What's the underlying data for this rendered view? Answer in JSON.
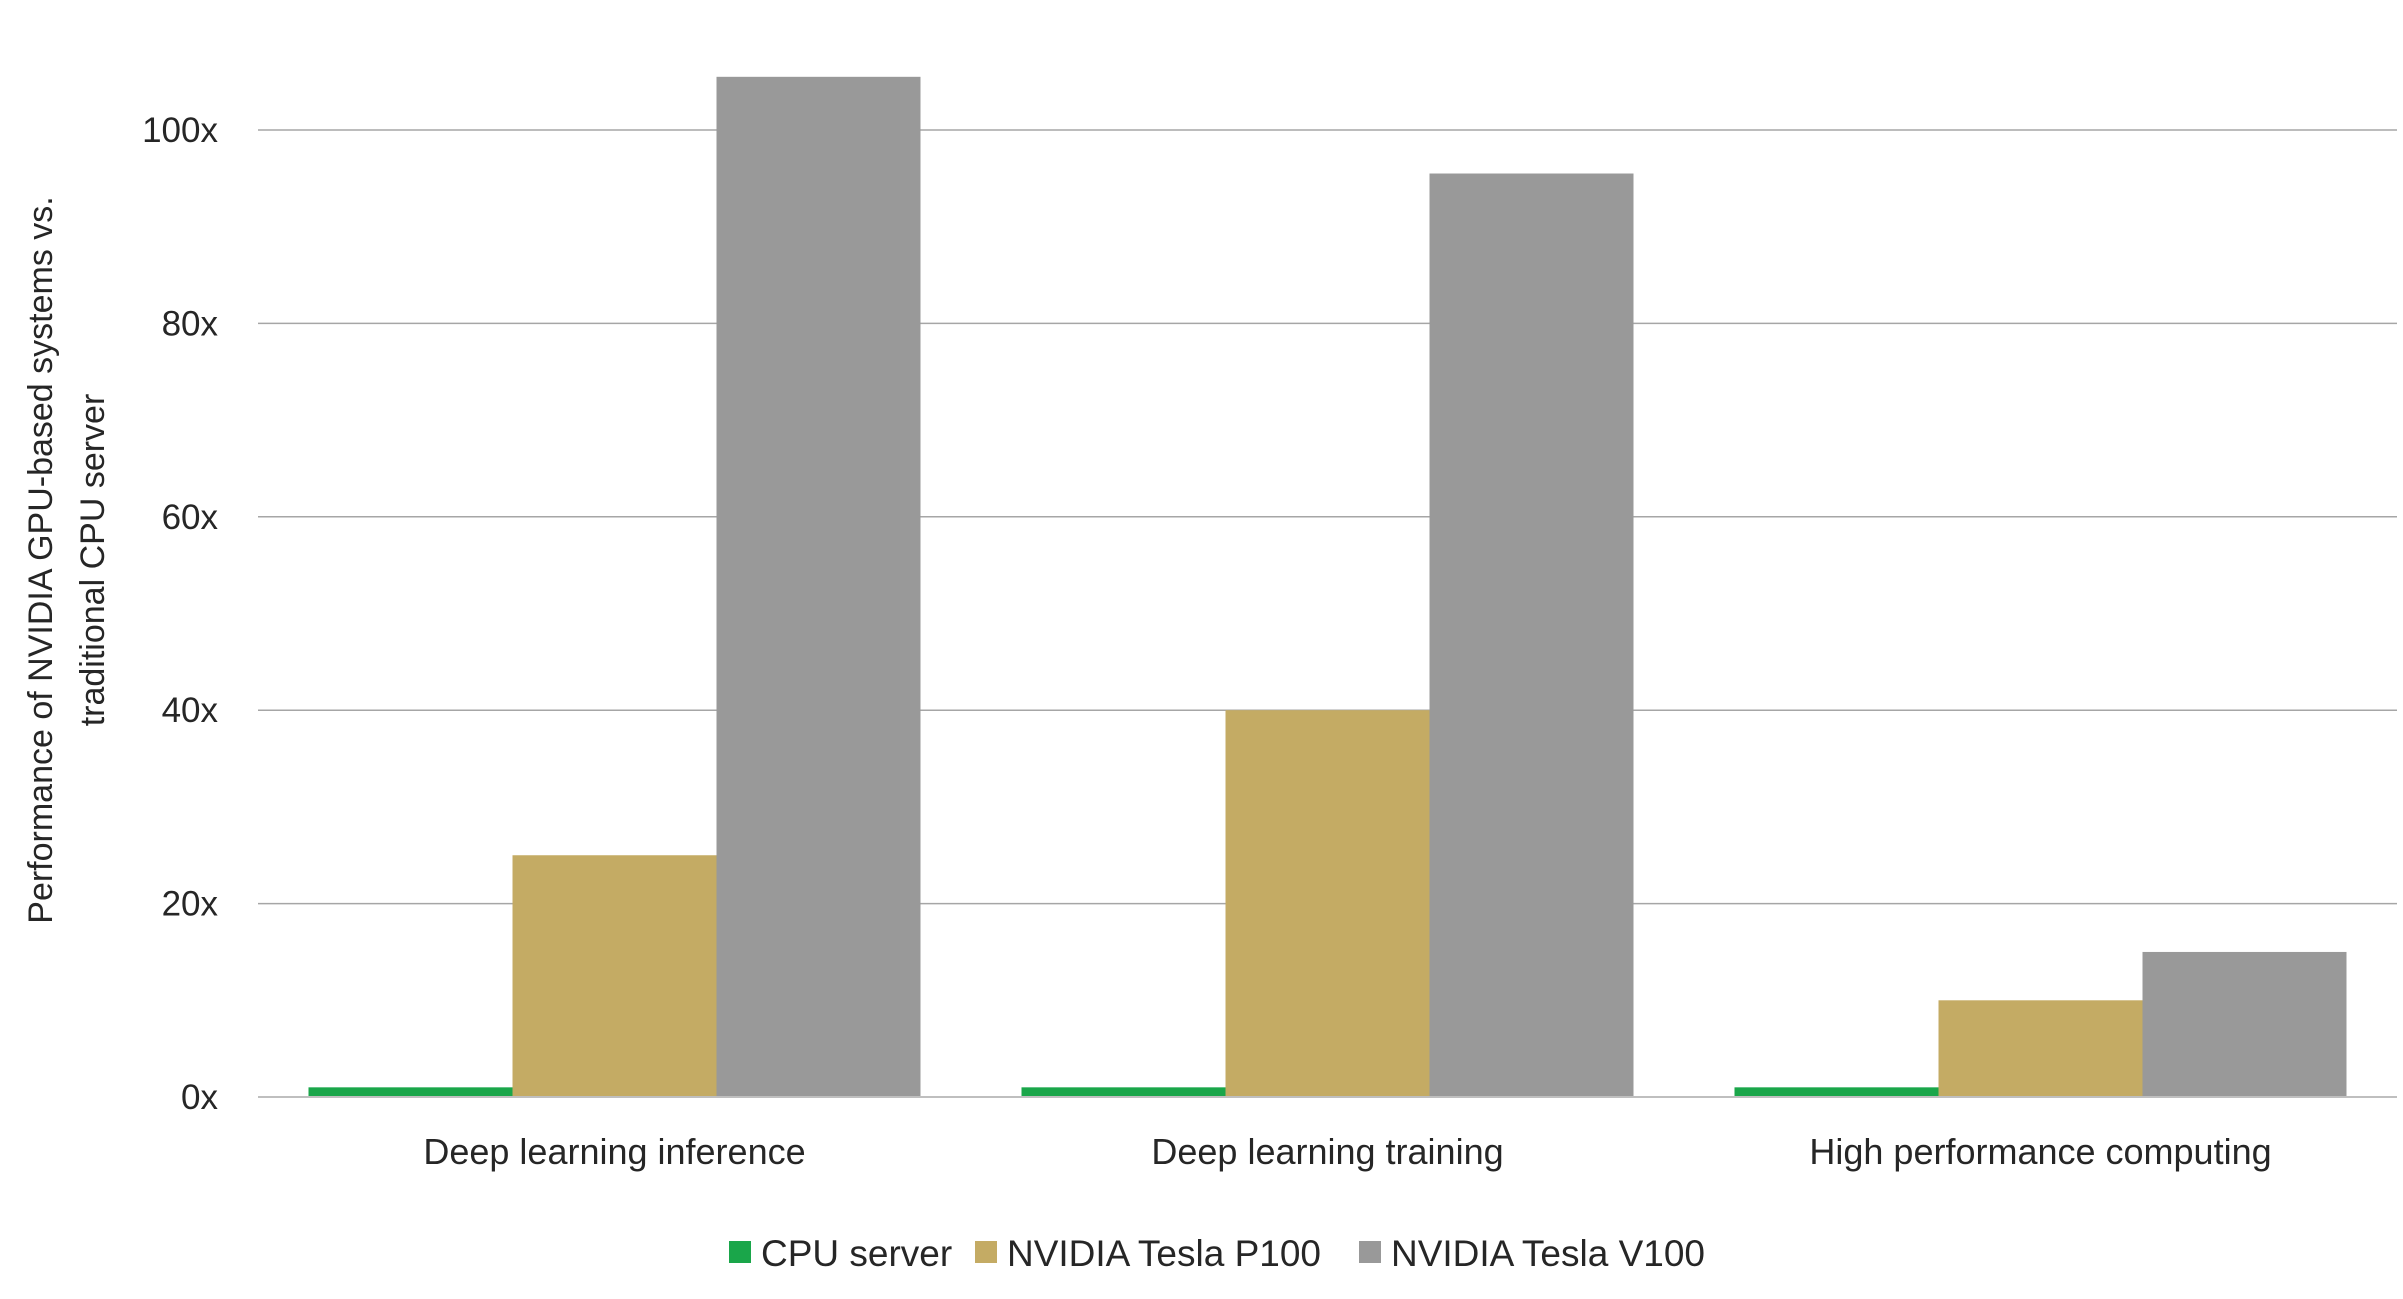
{
  "chart_data": {
    "type": "bar",
    "title": "",
    "xlabel": "",
    "ylabel_lines": [
      "Performance of NVIDIA GPU-based systems vs.",
      "traditional CPU server"
    ],
    "categories": [
      "Deep learning inference",
      "Deep learning training",
      "High performance computing"
    ],
    "series": [
      {
        "name": "CPU server",
        "color": "#1aa64a",
        "values": [
          1,
          1,
          1
        ]
      },
      {
        "name": "NVIDIA Tesla P100",
        "color": "#c4ab64",
        "values": [
          25,
          40,
          10
        ]
      },
      {
        "name": "NVIDIA Tesla V100",
        "color": "#999999",
        "values": [
          105.5,
          95.5,
          15
        ]
      }
    ],
    "ylim": [
      0,
      100
    ],
    "yticks": [
      0,
      20,
      40,
      60,
      80,
      100
    ],
    "ytick_labels": [
      "0x",
      "20x",
      "40x",
      "60x",
      "80x",
      "100x"
    ],
    "grid": true,
    "legend_position": "bottom"
  }
}
